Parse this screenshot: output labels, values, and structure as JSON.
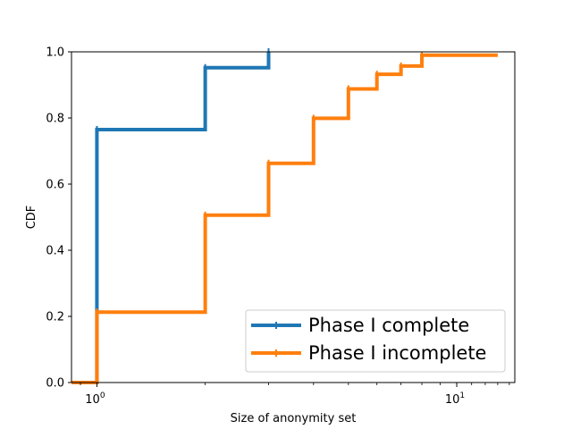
{
  "chart_data": {
    "type": "line",
    "subtype": "step-cdf",
    "xscale": "log",
    "xlabel": "Size of anonymity set",
    "ylabel": "CDF",
    "xlim": [
      0.85,
      14.5
    ],
    "ylim": [
      0,
      1.0
    ],
    "xticks": [
      {
        "value": 1,
        "base": "10",
        "exp": "0"
      },
      {
        "value": 10,
        "base": "10",
        "exp": "1"
      }
    ],
    "yticks": [
      "0.0",
      "0.2",
      "0.4",
      "0.6",
      "0.8",
      "1.0"
    ],
    "grid": false,
    "legend_position": "lower right",
    "series": [
      {
        "name": "Phase I complete",
        "color": "#1f77b4",
        "x": [
          0.85,
          1,
          1,
          2,
          2,
          3,
          3
        ],
        "y": [
          0.0,
          0.0,
          0.765,
          0.765,
          0.952,
          0.952,
          1.0
        ]
      },
      {
        "name": "Phase I incomplete",
        "color": "#ff7f0e",
        "x": [
          0.85,
          1,
          1,
          2,
          2,
          3,
          3,
          4,
          4,
          5,
          5,
          6,
          6,
          7,
          7,
          8,
          8,
          13
        ],
        "y": [
          0.0,
          0.0,
          0.213,
          0.213,
          0.506,
          0.506,
          0.663,
          0.663,
          0.799,
          0.799,
          0.888,
          0.888,
          0.932,
          0.932,
          0.957,
          0.957,
          0.99,
          0.99
        ]
      }
    ]
  }
}
